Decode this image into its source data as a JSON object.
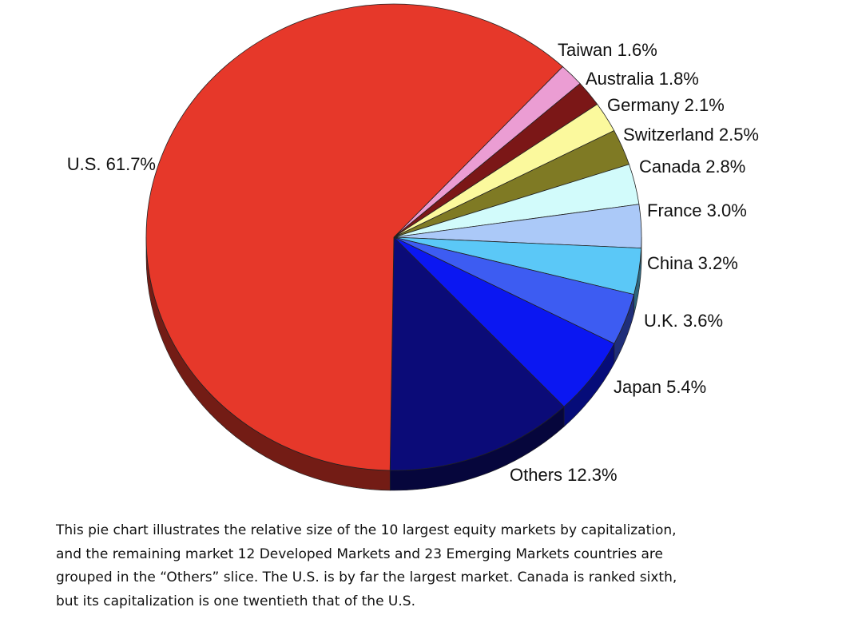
{
  "chart_data": {
    "type": "pie",
    "categories": [
      "Taiwan",
      "Australia",
      "Germany",
      "Switzerland",
      "Canada",
      "France",
      "China",
      "U.K.",
      "Japan",
      "Others",
      "U.S."
    ],
    "values": [
      1.6,
      1.8,
      2.1,
      2.5,
      2.8,
      3.0,
      3.2,
      3.6,
      5.4,
      12.3,
      61.7
    ],
    "value_labels": [
      "1.6%",
      "1.8%",
      "2.1%",
      "2.5%",
      "2.8%",
      "3.0%",
      "3.2%",
      "3.6%",
      "5.4%",
      "12.3%",
      "61.7%"
    ],
    "colors": [
      "#eb9dd3",
      "#7b1717",
      "#fbf99d",
      "#7f7a24",
      "#d2fbfb",
      "#abc9f8",
      "#5bc8f7",
      "#3d5cf2",
      "#0b17f2",
      "#0b0b78",
      "#e6382a"
    ]
  },
  "caption": [
    "This pie chart illustrates the relative size of the 10 largest equity markets by capitalization,",
    "and the remaining market 12 Developed Markets and 23 Emerging Markets countries are",
    "grouped in the “Others” slice. The U.S. is by far the largest market. Canada is ranked sixth,",
    "but its capitalization is one twentieth that of the U.S."
  ]
}
